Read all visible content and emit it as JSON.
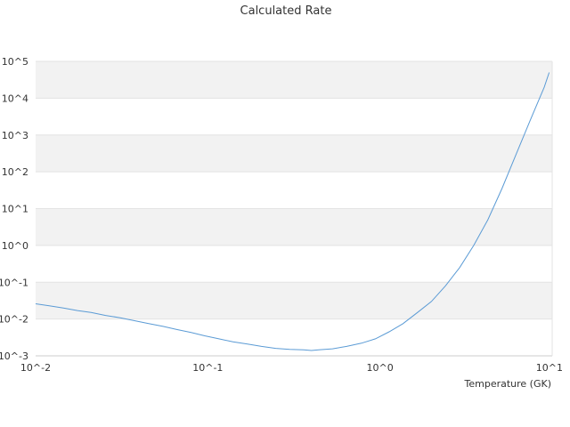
{
  "chart_data": {
    "type": "line",
    "title": "Calculated Rate",
    "xlabel": "Temperature (GK)",
    "ylabel": "",
    "x_scale": "log",
    "y_scale": "log",
    "xlim": [
      0.01,
      10
    ],
    "ylim": [
      0.001,
      100000
    ],
    "x_tick_labels": [
      "10^-2",
      "10^-1",
      "10^0",
      "10^1"
    ],
    "y_tick_labels": [
      "10^-3",
      "10^-2",
      "10^-1",
      "10^0",
      "10^1",
      "10^2",
      "10^3",
      "10^4",
      "10^5"
    ],
    "grid": "alternating horizontal bands",
    "legend": "none",
    "colors": {
      "line": "#5b9bd5",
      "band": "#f2f2f2",
      "axis": "#cccccc"
    },
    "series": [
      {
        "x": [
          0.01,
          0.012,
          0.0145,
          0.0175,
          0.021,
          0.0255,
          0.031,
          0.0375,
          0.045,
          0.055,
          0.066,
          0.08,
          0.096,
          0.116,
          0.14,
          0.17,
          0.205,
          0.248,
          0.299,
          0.36,
          0.4,
          0.44,
          0.53,
          0.64,
          0.78,
          0.94,
          1.13,
          1.36,
          1.65,
          1.99,
          2.4,
          2.9,
          3.5,
          4.23,
          5.11,
          6.17,
          7.45,
          8.99,
          9.6
        ],
        "y": [
          0.026,
          0.023,
          0.02,
          0.017,
          0.015,
          0.0125,
          0.0108,
          0.009,
          0.0076,
          0.0063,
          0.0052,
          0.0043,
          0.0035,
          0.0029,
          0.0024,
          0.0021,
          0.0018,
          0.0016,
          0.0015,
          0.00145,
          0.0014,
          0.00145,
          0.00155,
          0.0018,
          0.0022,
          0.0029,
          0.0045,
          0.0075,
          0.015,
          0.03,
          0.08,
          0.25,
          1.0,
          5.0,
          35.0,
          300.0,
          2500.0,
          20000.0,
          50000.0
        ]
      }
    ]
  }
}
